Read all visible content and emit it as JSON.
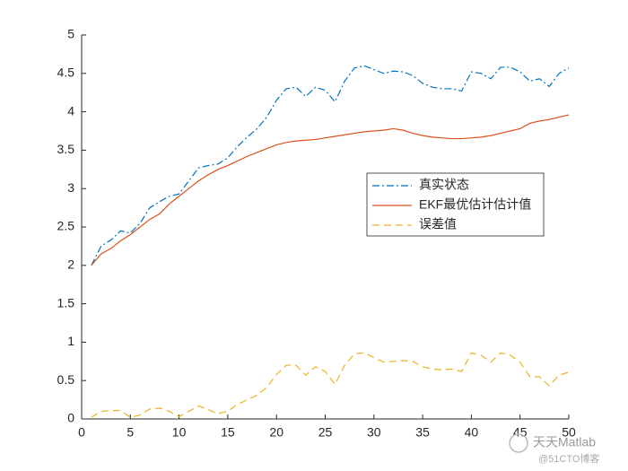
{
  "chart_data": {
    "type": "line",
    "x": [
      1,
      2,
      3,
      4,
      5,
      6,
      7,
      8,
      9,
      10,
      11,
      12,
      13,
      14,
      15,
      16,
      17,
      18,
      19,
      20,
      21,
      22,
      23,
      24,
      25,
      26,
      27,
      28,
      29,
      30,
      31,
      32,
      33,
      34,
      35,
      36,
      37,
      38,
      39,
      40,
      41,
      42,
      43,
      44,
      45,
      46,
      47,
      48,
      49,
      50
    ],
    "series": [
      {
        "name": "真实状态",
        "color": "#0072bd",
        "linestyle": "dashdot",
        "values": [
          2.0,
          2.25,
          2.33,
          2.45,
          2.42,
          2.55,
          2.75,
          2.83,
          2.9,
          2.93,
          3.1,
          3.27,
          3.3,
          3.32,
          3.4,
          3.55,
          3.67,
          3.78,
          3.93,
          4.15,
          4.3,
          4.32,
          4.2,
          4.32,
          4.28,
          4.13,
          4.4,
          4.57,
          4.6,
          4.55,
          4.5,
          4.53,
          4.52,
          4.47,
          4.37,
          4.32,
          4.3,
          4.3,
          4.27,
          4.52,
          4.5,
          4.43,
          4.58,
          4.58,
          4.52,
          4.4,
          4.43,
          4.33,
          4.5,
          4.57
        ]
      },
      {
        "name": "EKF最优估计估计值",
        "color": "#d95319",
        "linestyle": "solid",
        "values": [
          2.0,
          2.15,
          2.22,
          2.32,
          2.4,
          2.5,
          2.6,
          2.67,
          2.8,
          2.9,
          3.0,
          3.1,
          3.18,
          3.25,
          3.3,
          3.36,
          3.42,
          3.47,
          3.52,
          3.57,
          3.6,
          3.62,
          3.63,
          3.64,
          3.66,
          3.68,
          3.7,
          3.72,
          3.74,
          3.75,
          3.76,
          3.78,
          3.76,
          3.72,
          3.69,
          3.67,
          3.66,
          3.65,
          3.65,
          3.66,
          3.67,
          3.69,
          3.72,
          3.75,
          3.78,
          3.85,
          3.88,
          3.9,
          3.93,
          3.96
        ]
      },
      {
        "name": "误差值",
        "color": "#edb120",
        "linestyle": "dashed",
        "values": [
          0.02,
          0.1,
          0.11,
          0.11,
          0.02,
          0.05,
          0.13,
          0.14,
          0.1,
          0.03,
          0.1,
          0.17,
          0.12,
          0.07,
          0.1,
          0.19,
          0.25,
          0.31,
          0.41,
          0.58,
          0.7,
          0.7,
          0.57,
          0.68,
          0.62,
          0.45,
          0.7,
          0.85,
          0.86,
          0.8,
          0.74,
          0.75,
          0.76,
          0.75,
          0.68,
          0.65,
          0.64,
          0.65,
          0.62,
          0.86,
          0.83,
          0.74,
          0.86,
          0.83,
          0.74,
          0.55,
          0.55,
          0.43,
          0.57,
          0.61
        ]
      }
    ],
    "xlim": [
      0,
      50
    ],
    "xticks": [
      0,
      5,
      10,
      15,
      20,
      25,
      30,
      35,
      40,
      45,
      50
    ],
    "ylim": [
      0,
      5
    ],
    "yticks": [
      0,
      0.5,
      1,
      1.5,
      2,
      2.5,
      3,
      3.5,
      4,
      4.5,
      5
    ],
    "grid": false,
    "watermark": [
      "天天Matlab",
      "@51CTO博客"
    ]
  }
}
